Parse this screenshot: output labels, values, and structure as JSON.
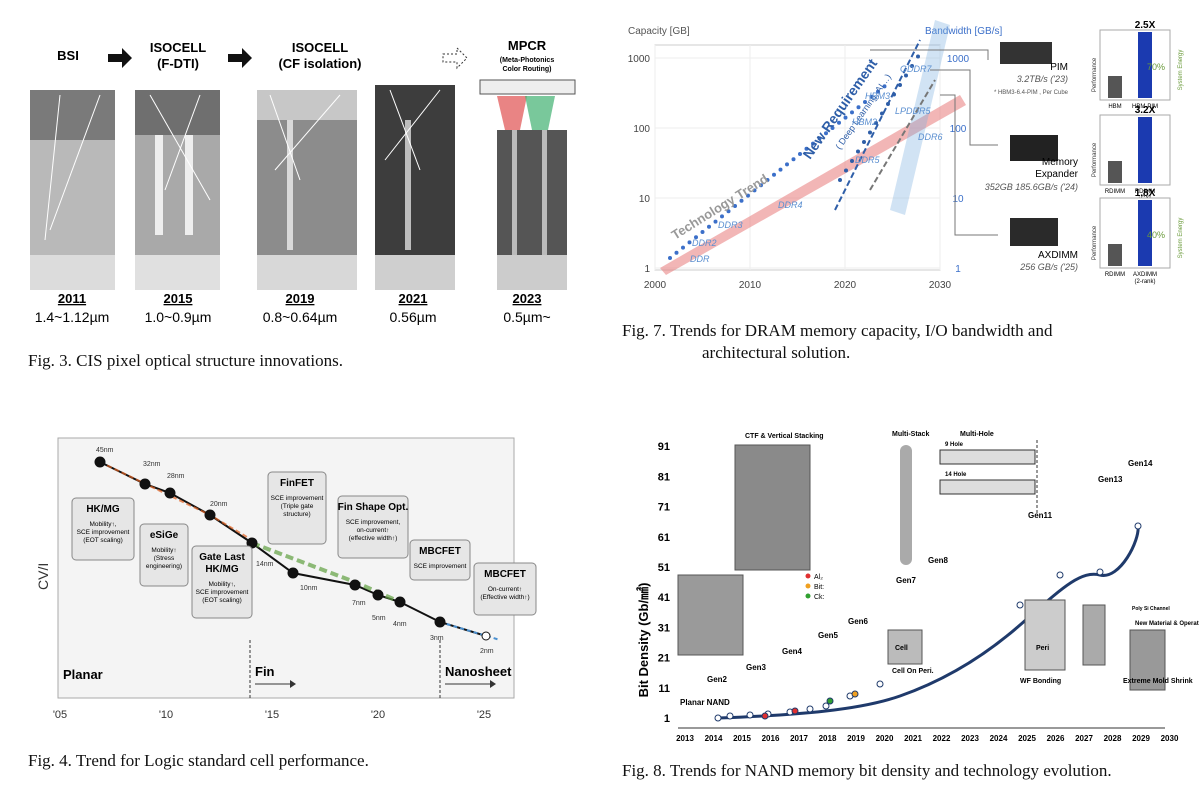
{
  "fig3": {
    "stages": [
      {
        "label": "BSI",
        "year": "2011",
        "size": "1.4~1.12µm"
      },
      {
        "label": "ISOCELL\n(F-DTI)",
        "year": "2015",
        "size": "1.0~0.9µm"
      },
      {
        "label": "ISOCELL\n(CF isolation)",
        "year": "2019",
        "size": "0.8~0.64µm"
      },
      {
        "label": "",
        "year": "2021",
        "size": "0.56µm"
      },
      {
        "label": "MPCR",
        "sublabel": "(Meta-Photonics\nColor Routing)",
        "year": "2023",
        "size": "0.5µm~"
      }
    ],
    "caption": "Fig. 3. CIS pixel optical structure innovations."
  },
  "fig7": {
    "caption_line1": "Fig. 7.  Trends for DRAM memory capacity, I/O bandwidth and",
    "caption_line2": "architectural solution.",
    "chart_data": {
      "type": "scatter",
      "x_ticks": [
        "2000",
        "2010",
        "2020",
        "2030"
      ],
      "y_left_label": "Capacity [GB]",
      "y_left_ticks": [
        "1",
        "10",
        "100",
        "1000"
      ],
      "y_right_label": "Bandwidth [GB/s]",
      "y_right_ticks": [
        "1",
        "10",
        "100",
        "1000"
      ],
      "annotations": [
        "Technology Trend",
        "New Requirement",
        "( Deep Learning, AI…)"
      ],
      "dram_labels": [
        "DDR",
        "DDR2",
        "DDR3",
        "DDR4",
        "DDR5",
        "DDR6",
        "HBM2",
        "HBM3",
        "GDDR7",
        "LPDDR5"
      ],
      "solutions": [
        {
          "name": "PIM",
          "spec": "3.2TB/s ('23)",
          "note": "* HBM3-6.4-PIM , Per Cube",
          "gain": "2.5X",
          "pct": "70%",
          "bars": [
            "HBM",
            "HBM-PIM"
          ]
        },
        {
          "name": "Memory\nExpander",
          "spec": "352GB 185.6GB/s ('24)",
          "gain": "3.2X",
          "bars": [
            "RDIMM",
            "RDIMM\n+CXL"
          ]
        },
        {
          "name": "AXDIMM",
          "spec": "256 GB/s ('25)",
          "gain": "1.8X",
          "pct": "40%",
          "bars": [
            "RDIMM",
            "AXDIMM\n(2-rank)"
          ]
        }
      ],
      "bar_axis_left": "Performance",
      "bar_axis_right": "System Energy"
    }
  },
  "fig4": {
    "caption": "Fig. 4. Trend for Logic standard cell performance.",
    "chart_data": {
      "type": "line",
      "ylabel": "CV/I",
      "x_ticks": [
        "'05",
        "'10",
        "'15",
        "'20",
        "'25"
      ],
      "nodes": [
        "45nm",
        "32nm",
        "28nm",
        "20nm",
        "14nm",
        "10nm",
        "7nm",
        "5nm",
        "4nm",
        "3nm",
        "2nm"
      ],
      "eras": [
        "Planar",
        "Fin",
        "Nanosheet"
      ],
      "boxes": [
        {
          "title": "HK/MG",
          "text": "Mobility↑,\nSCE improvement\n(EOT scaling)"
        },
        {
          "title": "eSiGe",
          "text": "Mobility↑\n(Stress\nengineering)"
        },
        {
          "title": "Gate Last\nHK/MG",
          "text": "Mobility↑,\nSCE improvement\n(EOT scaling)"
        },
        {
          "title": "FinFET",
          "text": "SCE improvement\n(Triple gate\nstructure)"
        },
        {
          "title": "Fin Shape Opt.",
          "text": "SCE improvement,\non-current↑\n(effective width↑)"
        },
        {
          "title": "MBCFET",
          "text": "SCE improvement"
        },
        {
          "title": "MBCFET",
          "text": "On-current↑\n(Effective width↑)"
        }
      ]
    }
  },
  "fig8": {
    "caption": "Fig. 8. Trends for NAND memory bit density and technology evolution.",
    "chart_data": {
      "type": "line",
      "ylabel": "Bit Density (Gb/㎟)",
      "y_ticks": [
        "1",
        "11",
        "21",
        "31",
        "41",
        "51",
        "61",
        "71",
        "81",
        "91"
      ],
      "x_ticks": [
        "2013",
        "2014",
        "2015",
        "2016",
        "2017",
        "2018",
        "2019",
        "2020",
        "2021",
        "2022",
        "2023",
        "2024",
        "2025",
        "2026",
        "2027",
        "2028",
        "2029",
        "2030"
      ],
      "gens": [
        "Planar NAND",
        "Gen2",
        "Gen3",
        "Gen4",
        "Gen5",
        "Gen6",
        "Gen7",
        "Gen8",
        "Gen11",
        "Gen13",
        "Gen14"
      ],
      "labels": [
        "CTF & Vertical Stacking",
        "Multi-Stack",
        "Multi-Hole",
        "9 Hole",
        "14 Hole",
        "Cell On Peri.",
        "WF Bonding",
        "Extreme Mold Shrink",
        "New Material & Operation → Lower Voltage",
        "Cell",
        "Peri",
        "Poly Si Channel"
      ],
      "legend": [
        "Al₂",
        "Bit:",
        "Ck:"
      ]
    }
  }
}
